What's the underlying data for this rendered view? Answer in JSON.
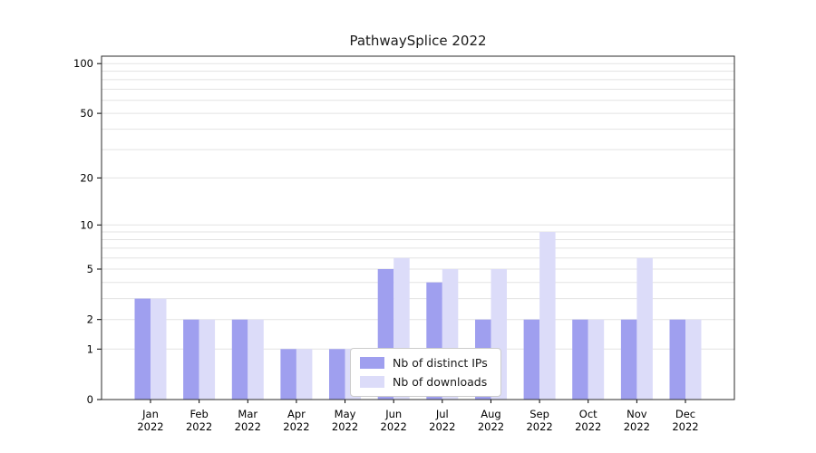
{
  "chart_data": {
    "type": "bar",
    "title": "PathwaySplice 2022",
    "year": "2022",
    "categories": [
      "Jan",
      "Feb",
      "Mar",
      "Apr",
      "May",
      "Jun",
      "Jul",
      "Aug",
      "Sep",
      "Oct",
      "Nov",
      "Dec"
    ],
    "series": [
      {
        "name": "Nb of distinct IPs",
        "color": "#9f9fef",
        "values": [
          3,
          2,
          2,
          1,
          1,
          5,
          4,
          2,
          2,
          2,
          2,
          2
        ]
      },
      {
        "name": "Nb of downloads",
        "color": "#dcdcf9",
        "values": [
          3,
          2,
          2,
          1,
          1,
          6,
          5,
          5,
          9,
          2,
          6,
          2
        ]
      }
    ],
    "y_ticks": [
      0,
      1,
      2,
      5,
      10,
      20,
      50,
      100
    ],
    "xlabel": "",
    "ylabel": "",
    "scale": "log(v+1)",
    "ylim": [
      0,
      100
    ],
    "grid": true,
    "legend_position": "bottom-center"
  }
}
